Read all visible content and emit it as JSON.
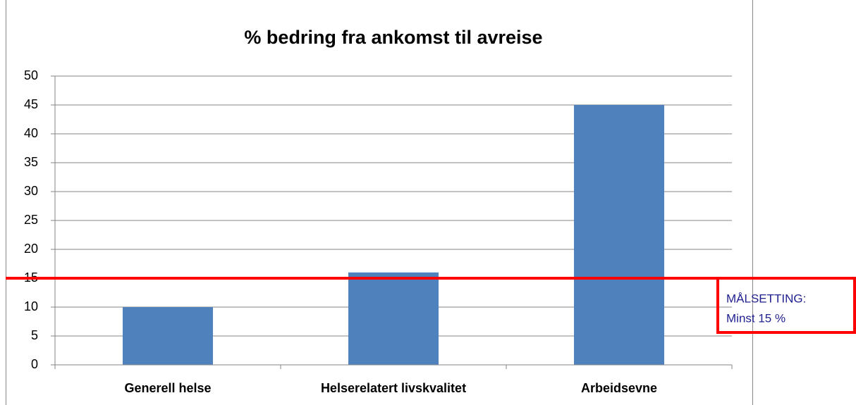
{
  "chart_data": {
    "type": "bar",
    "title": "% bedring fra ankomst til avreise",
    "categories": [
      "Generell helse",
      "Helserelatert livskvalitet",
      "Arbeidsevne"
    ],
    "values": [
      10,
      16,
      45
    ],
    "color": "#4f81bd",
    "ylim": [
      0,
      50
    ],
    "yticks": [
      0,
      5,
      10,
      15,
      20,
      25,
      30,
      35,
      40,
      45,
      50
    ],
    "grid": true,
    "target": {
      "value": 15,
      "color": "#ff0000",
      "label": [
        "MÅLSETTING:",
        "Minst 15 %"
      ]
    }
  }
}
